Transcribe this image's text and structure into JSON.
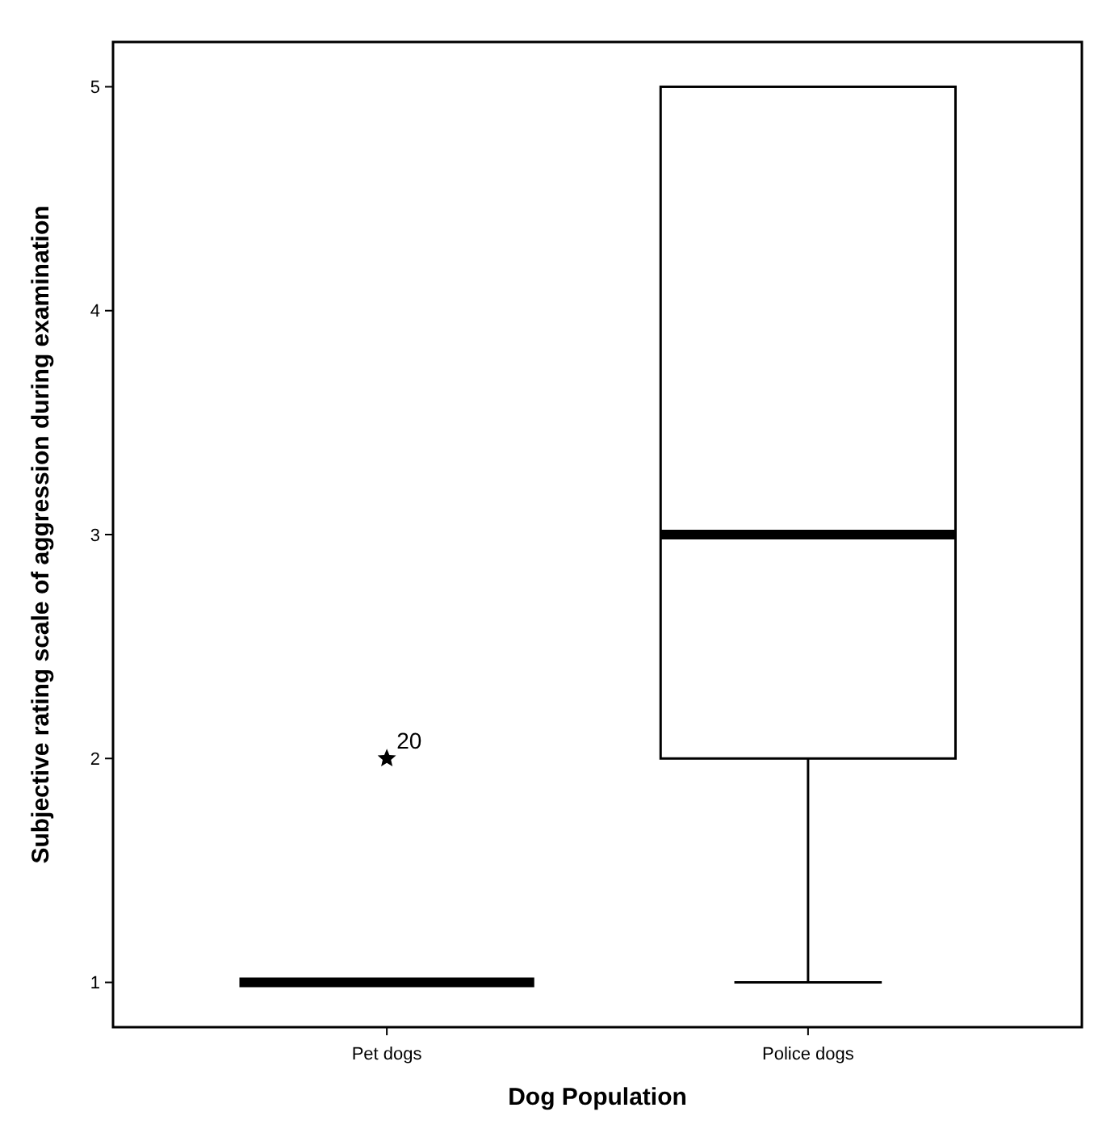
{
  "chart_data": {
    "type": "box",
    "xlabel": "Dog Population",
    "ylabel": "Subjective rating scale of aggression during examination",
    "categories": [
      "Pet dogs",
      "Police dogs"
    ],
    "boxes": [
      {
        "low": 1,
        "q1": 1,
        "median": 1,
        "q3": 1,
        "high": 1,
        "outliers": [
          2
        ]
      },
      {
        "low": 1,
        "q1": 2,
        "median": 3,
        "q3": 5,
        "high": 5
      }
    ],
    "ylim": [
      0.8,
      5.2
    ],
    "yticks": [
      1,
      2,
      3,
      4,
      5
    ],
    "marker": "star",
    "annotations": [
      "20"
    ]
  }
}
